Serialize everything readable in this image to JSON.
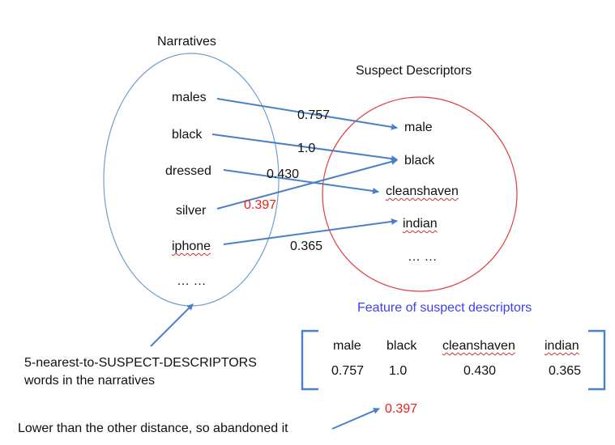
{
  "narratives": {
    "title": "Narratives",
    "words": [
      "males",
      "black",
      "dressed",
      "silver",
      "iphone"
    ],
    "ellipsis": "… …"
  },
  "suspect_descriptors": {
    "title": "Suspect Descriptors",
    "words": [
      "male",
      "black",
      "cleanshaven",
      "indian"
    ],
    "ellipsis": "… …"
  },
  "mappings": [
    {
      "from": "males",
      "to": "male",
      "distance": "0.757"
    },
    {
      "from": "black",
      "to": "black",
      "distance": "1.0"
    },
    {
      "from": "dressed",
      "to": "cleanshaven",
      "distance": "0.430"
    },
    {
      "from": "silver",
      "to": "black",
      "distance": "0.397",
      "highlight": true
    },
    {
      "from": "iphone",
      "to": "indian",
      "distance": "0.365"
    }
  ],
  "feature": {
    "title": "Feature of suspect descriptors",
    "headers": [
      "male",
      "black",
      "cleanshaven",
      "indian"
    ],
    "values": [
      "0.757",
      "1.0",
      "0.430",
      "0.365"
    ]
  },
  "annotations": {
    "nearest_words_line1": "5-nearest-to-SUSPECT-DESCRIPTORS",
    "nearest_words_line2": "words in the narratives",
    "abandoned_note": "Lower than the other distance, so abandoned it",
    "abandoned_value": "0.397"
  },
  "colors": {
    "narratives_circle": "#6f9fd0",
    "suspect_circle": "#e23a3a",
    "arrow": "#4a80c8",
    "highlight": "#e8211d",
    "feature_title": "#3a3ff5"
  }
}
